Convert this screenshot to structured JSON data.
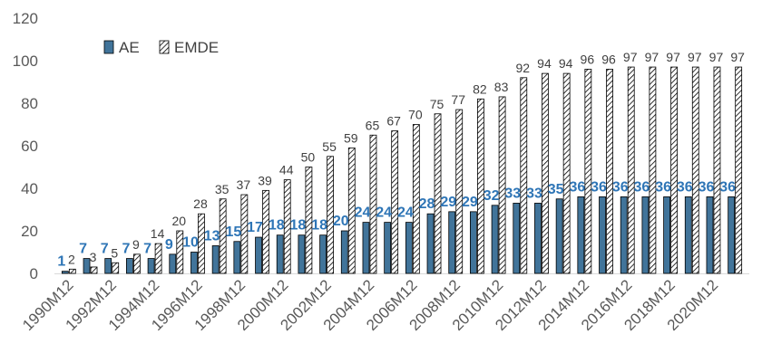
{
  "chart_data": {
    "type": "bar",
    "title": "",
    "xlabel": "",
    "ylabel": "",
    "ylim": [
      0,
      120
    ],
    "yticks": [
      0,
      20,
      40,
      60,
      80,
      100,
      120
    ],
    "grid": false,
    "legend_position": "top-left",
    "categories": [
      "1990M12",
      "1991M12",
      "1992M12",
      "1993M12",
      "1994M12",
      "1995M12",
      "1996M12",
      "1997M12",
      "1998M12",
      "1999M12",
      "2000M12",
      "2001M12",
      "2002M12",
      "2003M12",
      "2004M12",
      "2005M12",
      "2006M12",
      "2007M12",
      "2008M12",
      "2009M12",
      "2010M12",
      "2011M12",
      "2012M12",
      "2013M12",
      "2014M12",
      "2015M12",
      "2016M12",
      "2017M12",
      "2018M12",
      "2019M12",
      "2020M12",
      "2021M12"
    ],
    "x_tick_labels": [
      "1990M12",
      "1992M12",
      "1994M12",
      "1996M12",
      "1998M12",
      "2000M12",
      "2002M12",
      "2004M12",
      "2006M12",
      "2008M12",
      "2010M12",
      "2012M12",
      "2014M12",
      "2016M12",
      "2018M12",
      "2020M12"
    ],
    "series": [
      {
        "name": "AE",
        "fill": "#41749a",
        "label_color": "#2e75b6",
        "values": [
          1,
          7,
          7,
          7,
          7,
          9,
          10,
          13,
          15,
          17,
          18,
          18,
          18,
          20,
          24,
          24,
          24,
          28,
          29,
          29,
          32,
          33,
          33,
          35,
          36,
          36,
          36,
          36,
          36,
          36,
          36,
          36
        ]
      },
      {
        "name": "EMDE",
        "fill": "hatched",
        "label_color": "#404040",
        "values": [
          2,
          3,
          5,
          9,
          14,
          20,
          28,
          35,
          37,
          39,
          44,
          50,
          55,
          59,
          65,
          67,
          70,
          75,
          77,
          82,
          83,
          92,
          94,
          94,
          96,
          96,
          97,
          97,
          97,
          97,
          97,
          97
        ]
      }
    ]
  }
}
